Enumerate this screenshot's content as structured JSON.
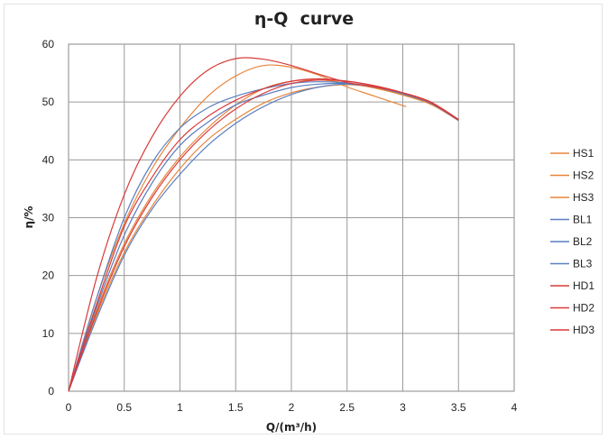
{
  "chart_data": {
    "type": "line",
    "title": "η-Q  curve",
    "xlabel": "Q/(m³/h)",
    "ylabel": "η/%",
    "xlim": [
      0,
      4
    ],
    "ylim": [
      0,
      60
    ],
    "xticks": [
      "0",
      "0.5",
      "1",
      "1.5",
      "2",
      "2.5",
      "3",
      "3.5",
      "4"
    ],
    "yticks": [
      "0",
      "10",
      "20",
      "30",
      "40",
      "50",
      "60"
    ],
    "grid": true,
    "legend_position": "right",
    "series": [
      {
        "name": "HS1",
        "color": "#e8853a",
        "x": [
          0,
          0.25,
          0.5,
          0.75,
          1.0,
          1.25,
          1.5,
          1.75,
          2.0,
          2.25,
          2.5,
          2.75,
          3.0,
          3.25,
          3.5
        ],
        "y": [
          0,
          13,
          24,
          32,
          38.5,
          43.5,
          47,
          49.8,
          51.6,
          52.6,
          53,
          52.5,
          51.3,
          49.8,
          46.8
        ]
      },
      {
        "name": "HS2",
        "color": "#e8853a",
        "x": [
          0,
          0.25,
          0.5,
          0.75,
          1.0,
          1.25,
          1.5,
          1.75,
          2.0,
          2.25,
          2.5,
          2.75,
          3.03
        ],
        "y": [
          0,
          16,
          29,
          38.5,
          45.5,
          51,
          54.5,
          56.3,
          56,
          54.6,
          52.6,
          51,
          49.2
        ]
      },
      {
        "name": "HS3",
        "color": "#e8853a",
        "x": [
          0,
          0.25,
          0.5,
          0.75,
          1.0,
          1.25,
          1.5,
          1.75,
          2.0,
          2.25,
          2.5,
          2.75,
          3.0,
          3.25,
          3.5
        ],
        "y": [
          0,
          14,
          25.5,
          34,
          40.5,
          45.5,
          49.5,
          52.3,
          53.6,
          53.8,
          53.3,
          52.4,
          51.2,
          49.6,
          46.8
        ]
      },
      {
        "name": "BL1",
        "color": "#5b7fbf",
        "x": [
          0,
          0.25,
          0.5,
          0.75,
          1.0,
          1.25,
          1.5,
          1.75,
          2.0,
          2.25,
          2.5,
          2.75,
          3.0,
          3.25,
          3.5
        ],
        "y": [
          0,
          14.5,
          27,
          36,
          42.5,
          46.5,
          49.5,
          51.2,
          52.5,
          53.1,
          53.2,
          52.6,
          51.5,
          49.9,
          46.9
        ]
      },
      {
        "name": "BL2",
        "color": "#5b7fbf",
        "x": [
          0,
          0.25,
          0.5,
          0.75,
          1.0,
          1.25,
          1.5,
          1.75,
          2.0,
          2.25,
          2.5,
          2.75,
          3.0,
          3.25,
          3.5
        ],
        "y": [
          0,
          16,
          30,
          39.5,
          45.5,
          49,
          51,
          52.3,
          53.2,
          53.5,
          53.3,
          52.6,
          51.4,
          49.8,
          46.8
        ]
      },
      {
        "name": "BL3",
        "color": "#5b7fbf",
        "x": [
          0,
          0.25,
          0.5,
          0.75,
          1.0,
          1.25,
          1.5,
          1.75,
          2.0,
          2.25,
          2.5,
          2.75,
          3.0,
          3.25,
          3.5
        ],
        "y": [
          0,
          12.5,
          23.5,
          31.5,
          37.5,
          42.5,
          46.3,
          49.2,
          51.3,
          52.6,
          53.1,
          52.6,
          51.5,
          49.9,
          46.9
        ]
      },
      {
        "name": "HD1",
        "color": "#d93a3a",
        "x": [
          0,
          0.25,
          0.5,
          0.75,
          1.0,
          1.25,
          1.5,
          1.75,
          2.0,
          2.25,
          2.5,
          2.75,
          3.0,
          3.25,
          3.5
        ],
        "y": [
          0,
          13.5,
          25,
          33.5,
          40,
          45,
          48.8,
          51.5,
          53.2,
          53.8,
          53.6,
          52.8,
          51.6,
          50,
          47
        ]
      },
      {
        "name": "HD2",
        "color": "#d93a3a",
        "x": [
          0,
          0.25,
          0.5,
          0.75,
          1.0,
          1.25,
          1.5,
          1.75,
          2.0,
          2.25,
          2.5,
          2.75,
          3.0,
          3.25,
          3.5
        ],
        "y": [
          0,
          15,
          28.5,
          37,
          43.5,
          47.5,
          50.3,
          52.3,
          53.6,
          54,
          53.6,
          52.8,
          51.6,
          49.9,
          46.9
        ]
      },
      {
        "name": "HD3",
        "color": "#d93a3a",
        "x": [
          0,
          0.25,
          0.5,
          0.75,
          1.0,
          1.25,
          1.5,
          1.75,
          2.0,
          2.25,
          2.5,
          2.75,
          3.0,
          3.25,
          3.5
        ],
        "y": [
          0,
          19.5,
          34,
          44,
          51,
          55.5,
          57.5,
          57.4,
          56.3,
          54.8,
          53.4,
          52.6,
          51.6,
          50,
          46.9
        ]
      }
    ]
  }
}
